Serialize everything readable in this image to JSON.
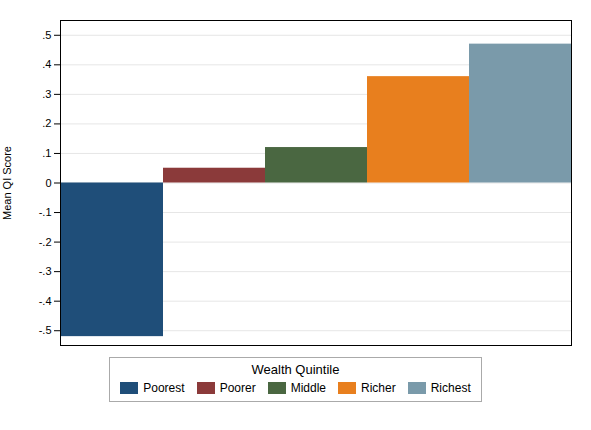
{
  "chart_data": {
    "type": "bar",
    "categories": [
      "Poorest",
      "Poorer",
      "Middle",
      "Richer",
      "Richest"
    ],
    "values": [
      -0.52,
      0.05,
      0.12,
      0.36,
      0.47
    ],
    "colors": [
      "#1f4e79",
      "#8b3a3a",
      "#4a6741",
      "#e87f1e",
      "#7a9aaa"
    ],
    "ylabel": "Mean QI Score",
    "legend_title": "Wealth Quintile",
    "ylim": [
      -0.55,
      0.55
    ],
    "yticks": [
      {
        "value": -0.5,
        "label": "-.5"
      },
      {
        "value": -0.4,
        "label": "-.4"
      },
      {
        "value": -0.3,
        "label": "-.3"
      },
      {
        "value": -0.2,
        "label": "-.2"
      },
      {
        "value": -0.1,
        "label": "-.1"
      },
      0,
      {
        "value": 0.1,
        "label": ".1"
      },
      {
        "value": 0.2,
        "label": ".2"
      },
      {
        "value": 0.3,
        "label": ".3"
      },
      {
        "value": 0.4,
        "label": ".4"
      },
      {
        "value": 0.5,
        "label": ".5"
      }
    ],
    "grid": true,
    "legend": "bottom",
    "tick_labels": "y"
  }
}
